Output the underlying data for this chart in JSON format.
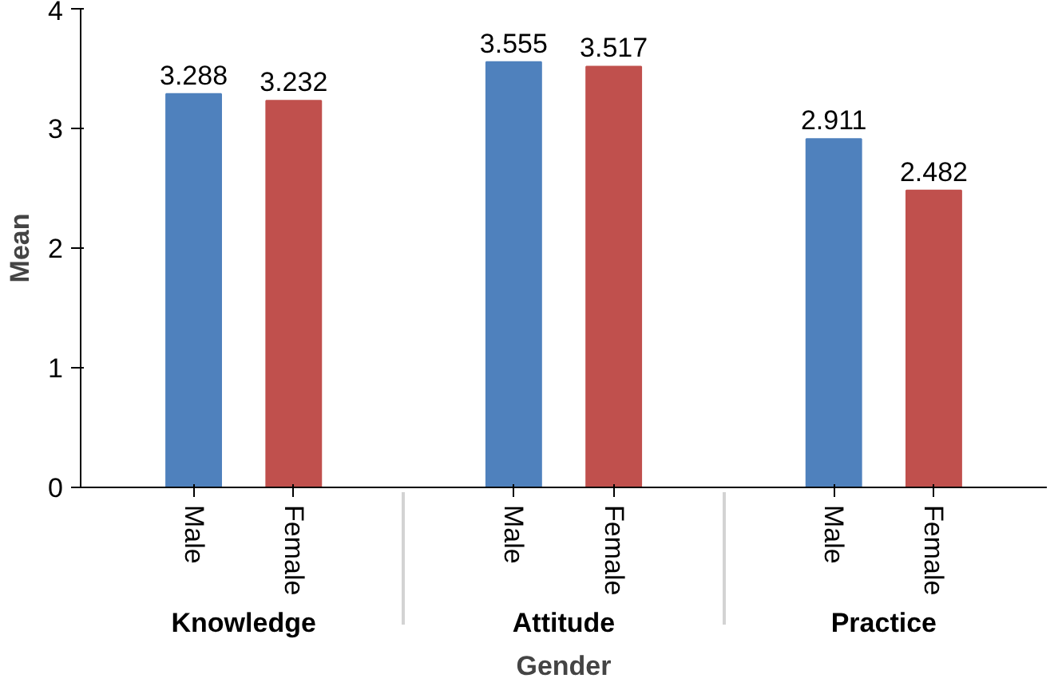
{
  "chart_data": {
    "type": "bar",
    "xlabel": "Gender",
    "ylabel": "Mean",
    "categories": [
      "Knowledge",
      "Attitude",
      "Practice"
    ],
    "series": [
      {
        "name": "Male",
        "color": "#4f81bd",
        "values": [
          3.288,
          3.555,
          2.911
        ]
      },
      {
        "name": "Female",
        "color": "#c0504d",
        "values": [
          3.232,
          3.517,
          2.482
        ]
      }
    ],
    "ylim": [
      0,
      4
    ],
    "yticks": [
      0,
      1,
      2,
      3,
      4
    ],
    "grid": false,
    "data_labels": true
  }
}
